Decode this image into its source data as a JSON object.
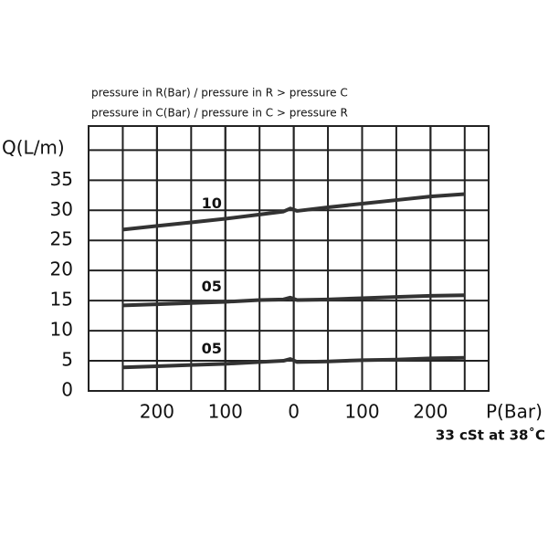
{
  "chart_data": {
    "type": "line",
    "annotations": [
      "pressure in R(Bar) / pressure in R > pressure C",
      "pressure in C(Bar) / pressure in C > pressure R"
    ],
    "y_label": "Q(L/m)",
    "x_label": "P(Bar)",
    "note": "33 cSt at 38˚C",
    "x": [
      -250,
      -200,
      -150,
      -100,
      -50,
      -15,
      -5,
      5,
      50,
      100,
      150,
      200,
      250
    ],
    "series": [
      {
        "name": "10",
        "color": "#333333",
        "values": [
          26.8,
          27.4,
          28.0,
          28.6,
          29.3,
          29.8,
          30.3,
          29.9,
          30.5,
          31.1,
          31.7,
          32.3,
          32.7
        ]
      },
      {
        "name": "05",
        "color": "#333333",
        "values": [
          14.2,
          14.4,
          14.6,
          14.8,
          15.1,
          15.2,
          15.5,
          15.1,
          15.2,
          15.4,
          15.6,
          15.8,
          15.9
        ]
      },
      {
        "name": "05",
        "color": "#333333",
        "values": [
          3.9,
          4.1,
          4.3,
          4.5,
          4.8,
          5.0,
          5.3,
          4.8,
          4.9,
          5.1,
          5.2,
          5.4,
          5.5
        ]
      }
    ],
    "xlim": [
      -300,
      285
    ],
    "ylim": [
      0,
      44
    ],
    "xticks": [
      {
        "value": -200,
        "label": "200"
      },
      {
        "value": -100,
        "label": "100"
      },
      0,
      100,
      200
    ],
    "yticks": [
      0,
      5,
      10,
      15,
      20,
      25,
      30,
      35
    ],
    "grid": true
  }
}
